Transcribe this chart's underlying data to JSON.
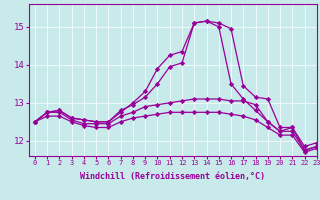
{
  "xlabel": "Windchill (Refroidissement éolien,°C)",
  "background_color": "#c8eaea",
  "line_color": "#990099",
  "xlim": [
    -0.5,
    23
  ],
  "ylim": [
    11.6,
    15.6
  ],
  "yticks": [
    12,
    13,
    14,
    15
  ],
  "xticks": [
    0,
    1,
    2,
    3,
    4,
    5,
    6,
    7,
    8,
    9,
    10,
    11,
    12,
    13,
    14,
    15,
    16,
    17,
    18,
    19,
    20,
    21,
    22,
    23
  ],
  "series": [
    [
      12.5,
      12.75,
      12.8,
      12.6,
      12.55,
      12.5,
      12.5,
      12.75,
      13.0,
      13.3,
      13.9,
      14.25,
      14.35,
      15.1,
      15.15,
      15.1,
      14.95,
      13.45,
      13.15,
      13.1,
      12.35,
      12.35,
      11.85,
      11.95
    ],
    [
      12.5,
      12.75,
      12.8,
      12.6,
      12.55,
      12.5,
      12.5,
      12.8,
      12.95,
      13.15,
      13.5,
      13.95,
      14.05,
      15.1,
      15.15,
      15.0,
      13.5,
      13.1,
      12.8,
      12.5,
      12.25,
      12.25,
      11.75,
      11.85
    ],
    [
      12.5,
      12.75,
      12.75,
      12.55,
      12.45,
      12.45,
      12.45,
      12.65,
      12.75,
      12.9,
      12.95,
      13.0,
      13.05,
      13.1,
      13.1,
      13.1,
      13.05,
      13.05,
      12.95,
      12.5,
      12.25,
      12.35,
      11.75,
      11.85
    ],
    [
      12.5,
      12.65,
      12.65,
      12.5,
      12.4,
      12.35,
      12.35,
      12.5,
      12.6,
      12.65,
      12.7,
      12.75,
      12.75,
      12.75,
      12.75,
      12.75,
      12.7,
      12.65,
      12.55,
      12.35,
      12.15,
      12.15,
      11.7,
      11.8
    ]
  ]
}
